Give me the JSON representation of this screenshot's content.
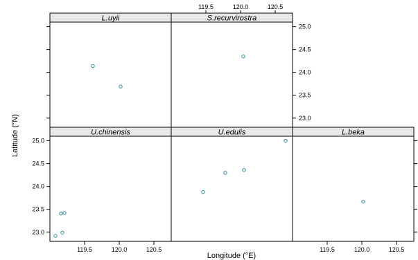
{
  "chart_data": {
    "type": "scatter",
    "xlabel": "Longitude (°E)",
    "ylabel": "Latitude (°N)",
    "xlim": [
      119.0,
      120.75
    ],
    "ylim": [
      22.8,
      25.1
    ],
    "xticks": [
      119.5,
      120.0,
      120.5
    ],
    "xtick_labels": [
      "119.5",
      "120.0",
      "120.5"
    ],
    "yticks": [
      23.0,
      23.5,
      24.0,
      24.5,
      25.0
    ],
    "ytick_labels": [
      "23.0",
      "23.5",
      "24.0",
      "24.5",
      "25.0"
    ],
    "point_color": "#2a8f9c",
    "strip_color": "#e8e8e8",
    "grid": false,
    "panels": [
      {
        "name": "L.uyii",
        "row": 0,
        "col": 0,
        "points": [
          [
            119.62,
            24.14
          ],
          [
            120.02,
            23.69
          ]
        ]
      },
      {
        "name": "S.recurvirostra",
        "row": 0,
        "col": 1,
        "points": [
          [
            120.04,
            24.35
          ]
        ]
      },
      {
        "name": "U.chinensis",
        "row": 1,
        "col": 0,
        "points": [
          [
            119.16,
            23.41
          ],
          [
            119.21,
            23.42
          ],
          [
            119.18,
            22.99
          ],
          [
            119.08,
            22.92
          ]
        ]
      },
      {
        "name": "U.edulis",
        "row": 1,
        "col": 1,
        "points": [
          [
            119.46,
            23.88
          ],
          [
            119.78,
            24.3
          ],
          [
            120.05,
            24.36
          ],
          [
            120.65,
            25.0
          ]
        ]
      },
      {
        "name": "L.beka",
        "row": 1,
        "col": 2,
        "points": [
          [
            120.02,
            23.67
          ]
        ]
      }
    ]
  }
}
